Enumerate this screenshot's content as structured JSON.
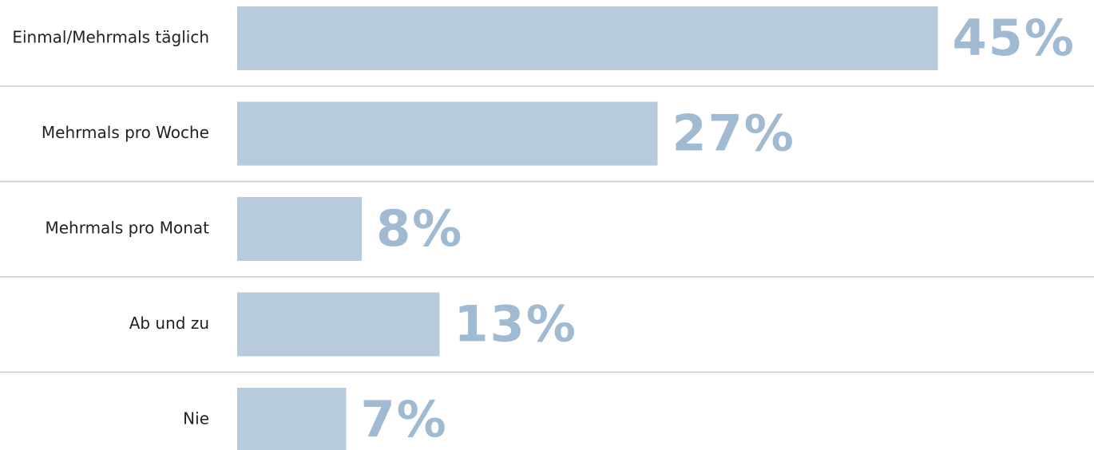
{
  "chart_data": {
    "type": "bar",
    "orientation": "horizontal",
    "categories": [
      "Einmal/Mehrmals täglich",
      "Mehrmals pro Woche",
      "Mehrmals pro Monat",
      "Ab und zu",
      "Nie"
    ],
    "values": [
      45,
      27,
      8,
      13,
      7
    ],
    "value_labels": [
      "45%",
      "27%",
      "8%",
      "13%",
      "7%"
    ],
    "color": "#b8cbdc"
  }
}
